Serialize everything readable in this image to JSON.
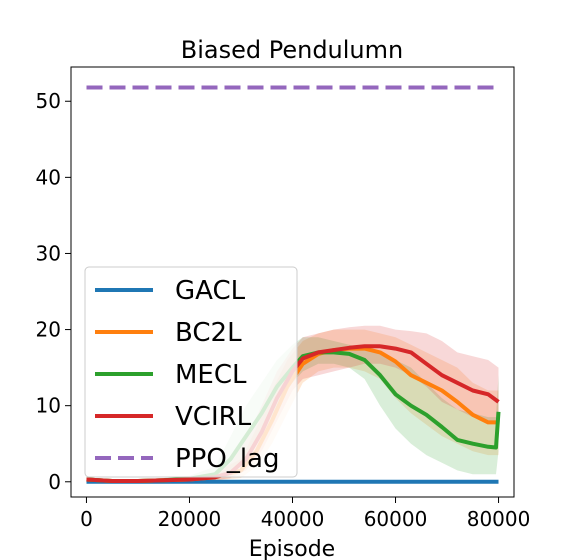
{
  "chart_data": {
    "type": "line",
    "title": "Biased Pendulumn",
    "xlabel": "Episode",
    "ylabel": "",
    "xlim": [
      -3000,
      83000
    ],
    "ylim": [
      -2,
      54.5
    ],
    "xticks": [
      0,
      20000,
      40000,
      60000,
      80000
    ],
    "xtick_labels": [
      "0",
      "20000",
      "40000",
      "60000",
      "80000"
    ],
    "yticks": [
      0,
      10,
      20,
      30,
      40,
      50
    ],
    "ytick_labels": [
      "0",
      "10",
      "20",
      "30",
      "40",
      "50"
    ],
    "grid": false,
    "legend_position": "center-left",
    "series": [
      {
        "name": "GACL",
        "color": "#1f77b4",
        "style": "solid",
        "x": [
          0,
          10000,
          20000,
          30000,
          40000,
          50000,
          60000,
          70000,
          80000
        ],
        "y": [
          0,
          0,
          0,
          0,
          0,
          0,
          0,
          0,
          0
        ],
        "lower": [
          0,
          0,
          0,
          0,
          0,
          0,
          0,
          0,
          0
        ],
        "upper": [
          0,
          0,
          0,
          0,
          0,
          0,
          0,
          0,
          0
        ]
      },
      {
        "name": "BC2L",
        "color": "#ff7f0e",
        "style": "solid",
        "x": [
          0,
          5000,
          10000,
          15000,
          20000,
          25000,
          30000,
          33000,
          36000,
          39000,
          42000,
          45000,
          48000,
          51000,
          54000,
          57000,
          60000,
          63000,
          66000,
          69000,
          72000,
          75000,
          78000,
          80000
        ],
        "y": [
          0.3,
          0.1,
          0.1,
          0.2,
          0.3,
          0.6,
          1.5,
          4,
          8,
          12.5,
          15.5,
          16.8,
          17.3,
          17.5,
          17.5,
          17,
          15.8,
          14,
          13,
          12,
          10.5,
          8.8,
          7.8,
          7.8
        ],
        "lower": [
          0,
          0,
          0,
          0,
          0,
          0.2,
          0.5,
          2,
          5,
          9,
          13,
          14.5,
          15,
          15,
          14.5,
          13.5,
          11,
          9,
          7.5,
          6,
          5,
          4,
          3.5,
          3.5
        ],
        "upper": [
          0.6,
          0.3,
          0.3,
          0.4,
          0.6,
          1.2,
          3,
          7,
          12,
          16,
          18.5,
          19.5,
          20,
          20,
          20,
          19.5,
          19,
          18,
          17,
          16,
          15,
          13,
          12,
          12
        ]
      },
      {
        "name": "MECL",
        "color": "#2ca02c",
        "style": "solid",
        "x": [
          0,
          5000,
          10000,
          15000,
          20000,
          25000,
          28000,
          31000,
          34000,
          37000,
          40000,
          42000,
          45000,
          48000,
          51000,
          54000,
          57000,
          60000,
          63000,
          66000,
          69000,
          72000,
          75000,
          78000,
          79500,
          80000
        ],
        "y": [
          0.3,
          0.1,
          0.1,
          0.2,
          0.4,
          1,
          3,
          6,
          9,
          12.5,
          15,
          16.5,
          17,
          17,
          16.8,
          16,
          14,
          11.5,
          10,
          8.8,
          7.2,
          5.5,
          5,
          4.6,
          4.5,
          9.2
        ],
        "lower": [
          0,
          0,
          0,
          0,
          0,
          0.3,
          1,
          3,
          6,
          10,
          13,
          14.5,
          15.5,
          15.5,
          15,
          13.5,
          10,
          7,
          5,
          3.5,
          2.5,
          1.5,
          1,
          1,
          1,
          4
        ],
        "upper": [
          0.6,
          0.3,
          0.3,
          0.5,
          0.8,
          2,
          6,
          10,
          13,
          16,
          18,
          19,
          19,
          18.5,
          18,
          17.5,
          17,
          16,
          15,
          13,
          11,
          9.5,
          9,
          8.5,
          8.5,
          14
        ]
      },
      {
        "name": "VCIRL",
        "color": "#d62728",
        "style": "solid",
        "x": [
          0,
          5000,
          10000,
          15000,
          20000,
          25000,
          28000,
          31000,
          34000,
          37000,
          40000,
          42000,
          45000,
          48000,
          51000,
          54000,
          57000,
          60000,
          63000,
          66000,
          69000,
          72000,
          75000,
          78000,
          80000
        ],
        "y": [
          0.3,
          0.1,
          0.1,
          0.2,
          0.3,
          0.6,
          1.2,
          3,
          6.5,
          11,
          14.5,
          16.2,
          17,
          17.3,
          17.6,
          17.8,
          17.8,
          17.5,
          17,
          15.5,
          14,
          13,
          12,
          11.5,
          10.5
        ],
        "lower": [
          0,
          0,
          0,
          0,
          0,
          0.2,
          0.5,
          1.5,
          4,
          8,
          12,
          13.5,
          14,
          14.5,
          15,
          15.5,
          15.5,
          15,
          14,
          12.5,
          10.5,
          9.5,
          8.5,
          8,
          7.5
        ],
        "upper": [
          0.6,
          0.3,
          0.3,
          0.5,
          0.6,
          1.2,
          2.5,
          5.5,
          10,
          14.5,
          17.5,
          19,
          19.5,
          20,
          20.3,
          20.5,
          20.5,
          20,
          19.8,
          19.5,
          18.5,
          17,
          16.5,
          16,
          15
        ]
      },
      {
        "name": "PPO_lag",
        "color": "#9467bd",
        "style": "dashed",
        "x": [
          0,
          80000
        ],
        "y": [
          51.8,
          51.8
        ]
      }
    ]
  }
}
